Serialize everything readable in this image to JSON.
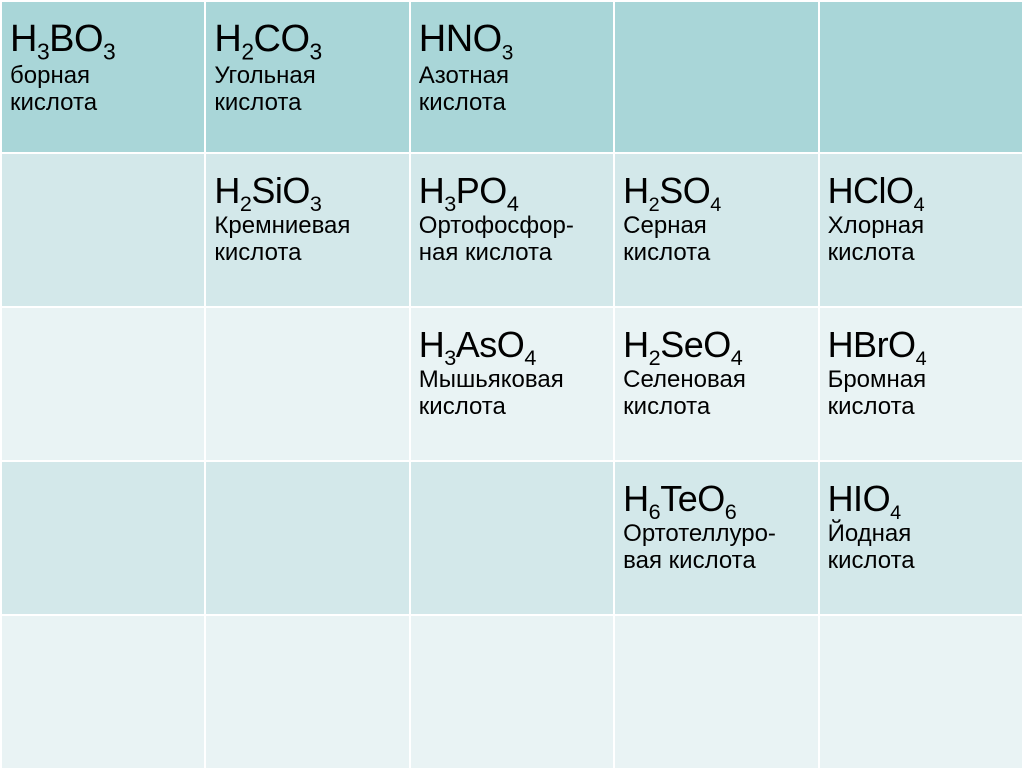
{
  "table": {
    "columns": 5,
    "rows": 5,
    "row_colors": [
      "#a9d6d8",
      "#d3e8ea",
      "#e9f3f4",
      "#d3e8ea",
      "#e9f3f4"
    ],
    "border_color": "#ffffff",
    "border_width": 2,
    "formula_fontsize_header": 38,
    "formula_fontsize_body": 36,
    "name_fontsize": 24,
    "text_color": "#000000",
    "cells": {
      "r1": [
        {
          "formula": "H₃BO₃",
          "formula_html": "H<sub>3</sub>BO<sub>3</sub>",
          "name_lines": [
            "борная",
            "кислота"
          ]
        },
        {
          "formula": "H₂CO₃",
          "formula_html": "H<sub>2</sub>CO<sub>3</sub>",
          "name_lines": [
            "Угольная",
            "кислота"
          ]
        },
        {
          "formula": "HNO₃",
          "formula_html": "HNO<sub class=\"small-sub\">3</sub>",
          "name_lines": [
            "Азотная",
            "кислота"
          ]
        },
        null,
        null
      ],
      "r2": [
        null,
        {
          "formula": "H₂SiO₃",
          "formula_html": "H<sub>2</sub>SiO<sub>3</sub>",
          "name_lines": [
            "Кремниевая",
            "кислота"
          ]
        },
        {
          "formula": "H₃PO₄",
          "formula_html": "H<sub>3</sub>PO<sub>4</sub>",
          "name_lines": [
            "Ортофосфор-",
            "ная кислота"
          ]
        },
        {
          "formula": "H₂SO₄",
          "formula_html": "H<sub class=\"small-sub\">2</sub>SO<sub class=\"small-sub\">4</sub>",
          "name_lines": [
            "Серная",
            "кислота"
          ]
        },
        {
          "formula": "HClO₄",
          "formula_html": "HClO<sub class=\"small-sub\">4</sub>",
          "name_lines": [
            "Хлорная",
            "кислота"
          ]
        }
      ],
      "r3": [
        null,
        null,
        {
          "formula": "H₃AsO₄",
          "formula_html": "H<sub>3</sub>AsO<sub>4</sub>",
          "name_lines": [
            "Мышьяковая",
            "кислота"
          ]
        },
        {
          "formula": "H₂SeO₄",
          "formula_html": "H<sub>2</sub>SeO<sub>4</sub>",
          "name_lines": [
            "Селеновая",
            "кислота"
          ]
        },
        {
          "formula": "HBrO₄",
          "formula_html": "HBrO<sub class=\"small-sub\">4</sub>",
          "name_lines": [
            "Бромная",
            "кислота"
          ]
        }
      ],
      "r4": [
        null,
        null,
        null,
        {
          "formula": "H₆TeO₆",
          "formula_html": "H<sub>6</sub>TeO<sub>6</sub>",
          "name_lines": [
            "Ортотеллуро-",
            "вая кислота"
          ]
        },
        {
          "formula": "HIO₄",
          "formula_html": "HIO<sub class=\"small-sub\">4</sub>",
          "name_lines": [
            "Йодная",
            "кислота"
          ]
        }
      ],
      "r5": [
        null,
        null,
        null,
        null,
        null
      ]
    }
  }
}
